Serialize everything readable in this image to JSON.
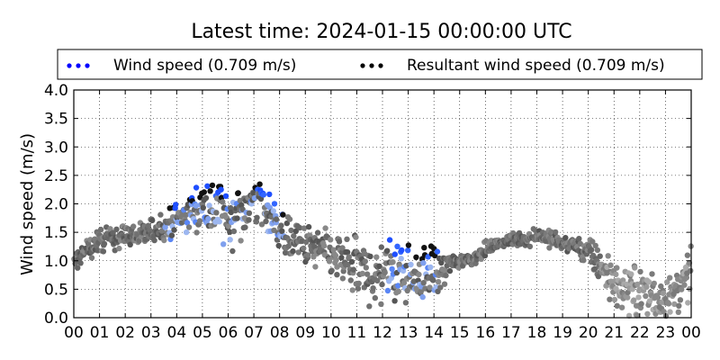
{
  "chart_data": {
    "type": "scatter",
    "title": "Latest time: 2024-01-15 00:00:00 UTC",
    "xlabel": "",
    "ylabel": "Wind speed (m/s)",
    "xlim": [
      0,
      24
    ],
    "ylim": [
      0,
      4.0
    ],
    "x_ticks": [
      "00",
      "01",
      "02",
      "03",
      "04",
      "05",
      "06",
      "07",
      "08",
      "09",
      "10",
      "11",
      "12",
      "13",
      "14",
      "15",
      "16",
      "17",
      "18",
      "19",
      "20",
      "21",
      "22",
      "23",
      "00"
    ],
    "y_ticks": [
      "0.0",
      "0.5",
      "1.0",
      "1.5",
      "2.0",
      "2.5",
      "3.0",
      "3.5",
      "4.0"
    ],
    "grid": true,
    "legend_position": "top",
    "series": [
      {
        "name": "Wind speed (0.709 m/s)",
        "color": "#0000ff",
        "marker": "circle"
      },
      {
        "name": "Resultant wind speed (0.709 m/s)",
        "color": "#000000",
        "marker": "circle"
      }
    ],
    "trend": {
      "x": [
        0,
        0.5,
        1,
        1.5,
        2,
        2.5,
        3,
        3.5,
        4,
        4.5,
        5,
        5.5,
        6,
        6.5,
        7,
        7.5,
        8,
        8.5,
        9,
        9.5,
        10,
        10.5,
        11,
        11.5,
        12,
        12.5,
        13,
        13.5,
        14,
        14.5,
        15,
        15.5,
        16,
        16.5,
        17,
        17.5,
        18,
        18.5,
        19,
        19.5,
        20,
        20.5,
        21,
        21.5,
        22,
        22.5,
        23,
        23.5,
        24
      ],
      "y": [
        0.95,
        1.2,
        1.35,
        1.4,
        1.45,
        1.45,
        1.5,
        1.65,
        1.75,
        1.85,
        1.95,
        1.9,
        1.7,
        1.85,
        2.1,
        1.85,
        1.55,
        1.35,
        1.25,
        1.2,
        1.1,
        1.0,
        0.85,
        0.75,
        0.8,
        0.85,
        0.8,
        0.75,
        0.8,
        0.9,
        1.0,
        1.05,
        1.2,
        1.3,
        1.35,
        1.4,
        1.45,
        1.4,
        1.3,
        1.25,
        1.15,
        0.9,
        0.6,
        0.5,
        0.45,
        0.4,
        0.35,
        0.45,
        0.8
      ]
    },
    "spread": {
      "x": [
        0,
        3,
        5,
        6,
        7,
        8,
        10,
        12,
        14,
        15,
        17,
        19,
        20,
        21,
        22,
        24
      ],
      "dy": [
        0.15,
        0.2,
        0.3,
        0.5,
        0.35,
        0.3,
        0.35,
        0.45,
        0.4,
        0.1,
        0.12,
        0.12,
        0.2,
        0.3,
        0.35,
        0.35
      ]
    },
    "annotations": []
  }
}
